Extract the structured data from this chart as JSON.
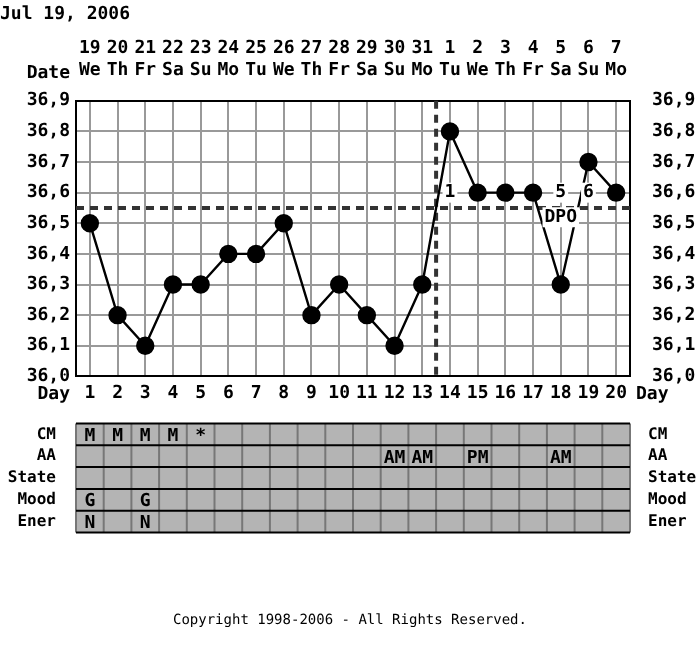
{
  "chart_data": [
    {
      "type": "line",
      "title": "Jul 19, 2006",
      "xlabel": "Day",
      "x2label": "Date",
      "x": [
        1,
        2,
        3,
        4,
        5,
        6,
        7,
        8,
        9,
        10,
        11,
        12,
        13,
        14,
        15,
        16,
        17,
        18,
        19,
        20
      ],
      "series": [
        {
          "color": "#000000",
          "values": [
            36.5,
            36.2,
            36.1,
            36.3,
            36.3,
            36.4,
            36.4,
            36.5,
            36.2,
            36.3,
            36.2,
            36.1,
            36.3,
            36.8,
            36.6,
            36.6,
            36.6,
            36.3,
            36.7,
            36.6
          ]
        }
      ],
      "xlim": [
        0.5,
        20.5
      ],
      "xticks": [
        1,
        2,
        3,
        4,
        5,
        6,
        7,
        8,
        9,
        10,
        11,
        12,
        13,
        14,
        15,
        16,
        17,
        18,
        19,
        20
      ],
      "x2lim": [
        "2006-07-18T12:00",
        "2006-08-07T12:00"
      ],
      "x2ticks": [
        {
          "value": "2006-07-19",
          "label": "19 We"
        },
        {
          "value": "2006-07-20",
          "label": "20 Th"
        },
        {
          "value": "2006-07-21",
          "label": "21 Fr"
        },
        {
          "value": "2006-07-22",
          "label": "22 Sa"
        },
        {
          "value": "2006-07-23",
          "label": "23 Su"
        },
        {
          "value": "2006-07-24",
          "label": "24 Mo"
        },
        {
          "value": "2006-07-25",
          "label": "25 Tu"
        },
        {
          "value": "2006-07-26",
          "label": "26 We"
        },
        {
          "value": "2006-07-27",
          "label": "27 Th"
        },
        {
          "value": "2006-07-28",
          "label": "28 Fr"
        },
        {
          "value": "2006-07-29",
          "label": "29 Sa"
        },
        {
          "value": "2006-07-30",
          "label": "30 Su"
        },
        {
          "value": "2006-07-31",
          "label": "31 Mo"
        },
        {
          "value": "2006-08-01",
          "label": "1 Tu"
        },
        {
          "value": "2006-08-02",
          "label": "2 We"
        },
        {
          "value": "2006-08-03",
          "label": "3 Th"
        },
        {
          "value": "2006-08-04",
          "label": "4 Fr"
        },
        {
          "value": "2006-08-05",
          "label": "5 Sa"
        },
        {
          "value": "2006-08-06",
          "label": "6 Su"
        },
        {
          "value": "2006-08-07",
          "label": "7 Mo"
        }
      ],
      "ylim": [
        36.0,
        36.9
      ],
      "yticks": [
        {
          "value": 36.0,
          "label": "36,0"
        },
        {
          "value": 36.1,
          "label": "36,1"
        },
        {
          "value": 36.2,
          "label": "36,2"
        },
        {
          "value": 36.3,
          "label": "36,3"
        },
        {
          "value": 36.4,
          "label": "36,4"
        },
        {
          "value": 36.5,
          "label": "36,5"
        },
        {
          "value": 36.6,
          "label": "36,6"
        },
        {
          "value": 36.7,
          "label": "36,7"
        },
        {
          "value": 36.8,
          "label": "36,8"
        },
        {
          "value": 36.9,
          "label": "36,9"
        }
      ],
      "y2lim": [
        36.0,
        36.9
      ],
      "y2ticks": [
        {
          "value": 36.0,
          "label": "36,0"
        },
        {
          "value": 36.1,
          "label": "36,1"
        },
        {
          "value": 36.2,
          "label": "36,2"
        },
        {
          "value": 36.3,
          "label": "36,3"
        },
        {
          "value": 36.4,
          "label": "36,4"
        },
        {
          "value": 36.5,
          "label": "36,5"
        },
        {
          "value": 36.6,
          "label": "36,6"
        },
        {
          "value": 36.7,
          "label": "36,7"
        },
        {
          "value": 36.8,
          "label": "36,8"
        },
        {
          "value": 36.9,
          "label": "36,9"
        }
      ],
      "grid": true,
      "marker": "circle",
      "line_style": "solid",
      "legend": false,
      "ref_lines": [
        {
          "axis": "y",
          "value": 36.55,
          "line_style": "dashed",
          "color": "#333333"
        },
        {
          "axis": "x",
          "value": 13.5,
          "line_style": "dashed",
          "color": "#333333"
        }
      ],
      "annotations": [
        {
          "text": "1",
          "x": 14,
          "y": 36.6
        },
        {
          "text": "5",
          "x": 18,
          "y": 36.6
        },
        {
          "text": "6",
          "x": 19,
          "y": 36.6
        },
        {
          "text": "DPO",
          "x": 18,
          "y": 36.52
        },
        "Copyright 1998-2006 - All Rights Reserved."
      ]
    },
    {
      "type": "heatmap",
      "categories": [
        null,
        null,
        null,
        null,
        null,
        null,
        null,
        null,
        null,
        null,
        null,
        null,
        null,
        null,
        null,
        null,
        null,
        null,
        null,
        null
      ],
      "y_categories": [
        "CM",
        "AA",
        "State",
        "Mood",
        "Ener"
      ],
      "y2_categories": [
        "CM",
        "AA",
        "State",
        "Mood",
        "Ener"
      ],
      "cells": [
        [
          null,
          null,
          null,
          null,
          null,
          null,
          null,
          null,
          null,
          null,
          null,
          null,
          null,
          null,
          null,
          null,
          null,
          null,
          null,
          null
        ],
        [
          null,
          null,
          null,
          null,
          null,
          null,
          null,
          null,
          null,
          null,
          null,
          null,
          null,
          null,
          null,
          null,
          null,
          null,
          null,
          null
        ],
        [
          null,
          null,
          null,
          null,
          null,
          null,
          null,
          null,
          null,
          null,
          null,
          null,
          null,
          null,
          null,
          null,
          null,
          null,
          null,
          null
        ],
        [
          null,
          null,
          null,
          null,
          null,
          null,
          null,
          null,
          null,
          null,
          null,
          null,
          null,
          null,
          null,
          null,
          null,
          null,
          null,
          null
        ],
        [
          null,
          null,
          null,
          null,
          null,
          null,
          null,
          null,
          null,
          null,
          null,
          null,
          null,
          null,
          null,
          null,
          null,
          null,
          null,
          null
        ]
      ],
      "cell_labels": [
        [
          "M",
          "M",
          "M",
          "M",
          "*",
          null,
          null,
          null,
          null,
          null,
          null,
          null,
          null,
          null,
          null,
          null,
          null,
          null,
          null,
          null
        ],
        [
          null,
          null,
          null,
          null,
          null,
          null,
          null,
          null,
          null,
          null,
          null,
          "AM",
          "AM",
          null,
          "PM",
          null,
          null,
          "AM",
          null,
          null
        ],
        [
          null,
          null,
          null,
          null,
          null,
          null,
          null,
          null,
          null,
          null,
          null,
          null,
          null,
          null,
          null,
          null,
          null,
          null,
          null,
          null
        ],
        [
          "G",
          null,
          "G",
          null,
          null,
          null,
          null,
          null,
          null,
          null,
          null,
          null,
          null,
          null,
          null,
          null,
          null,
          null,
          null,
          null
        ],
        [
          "N",
          null,
          "N",
          null,
          null,
          null,
          null,
          null,
          null,
          null,
          null,
          null,
          null,
          null,
          null,
          null,
          null,
          null,
          null,
          null
        ]
      ]
    }
  ]
}
